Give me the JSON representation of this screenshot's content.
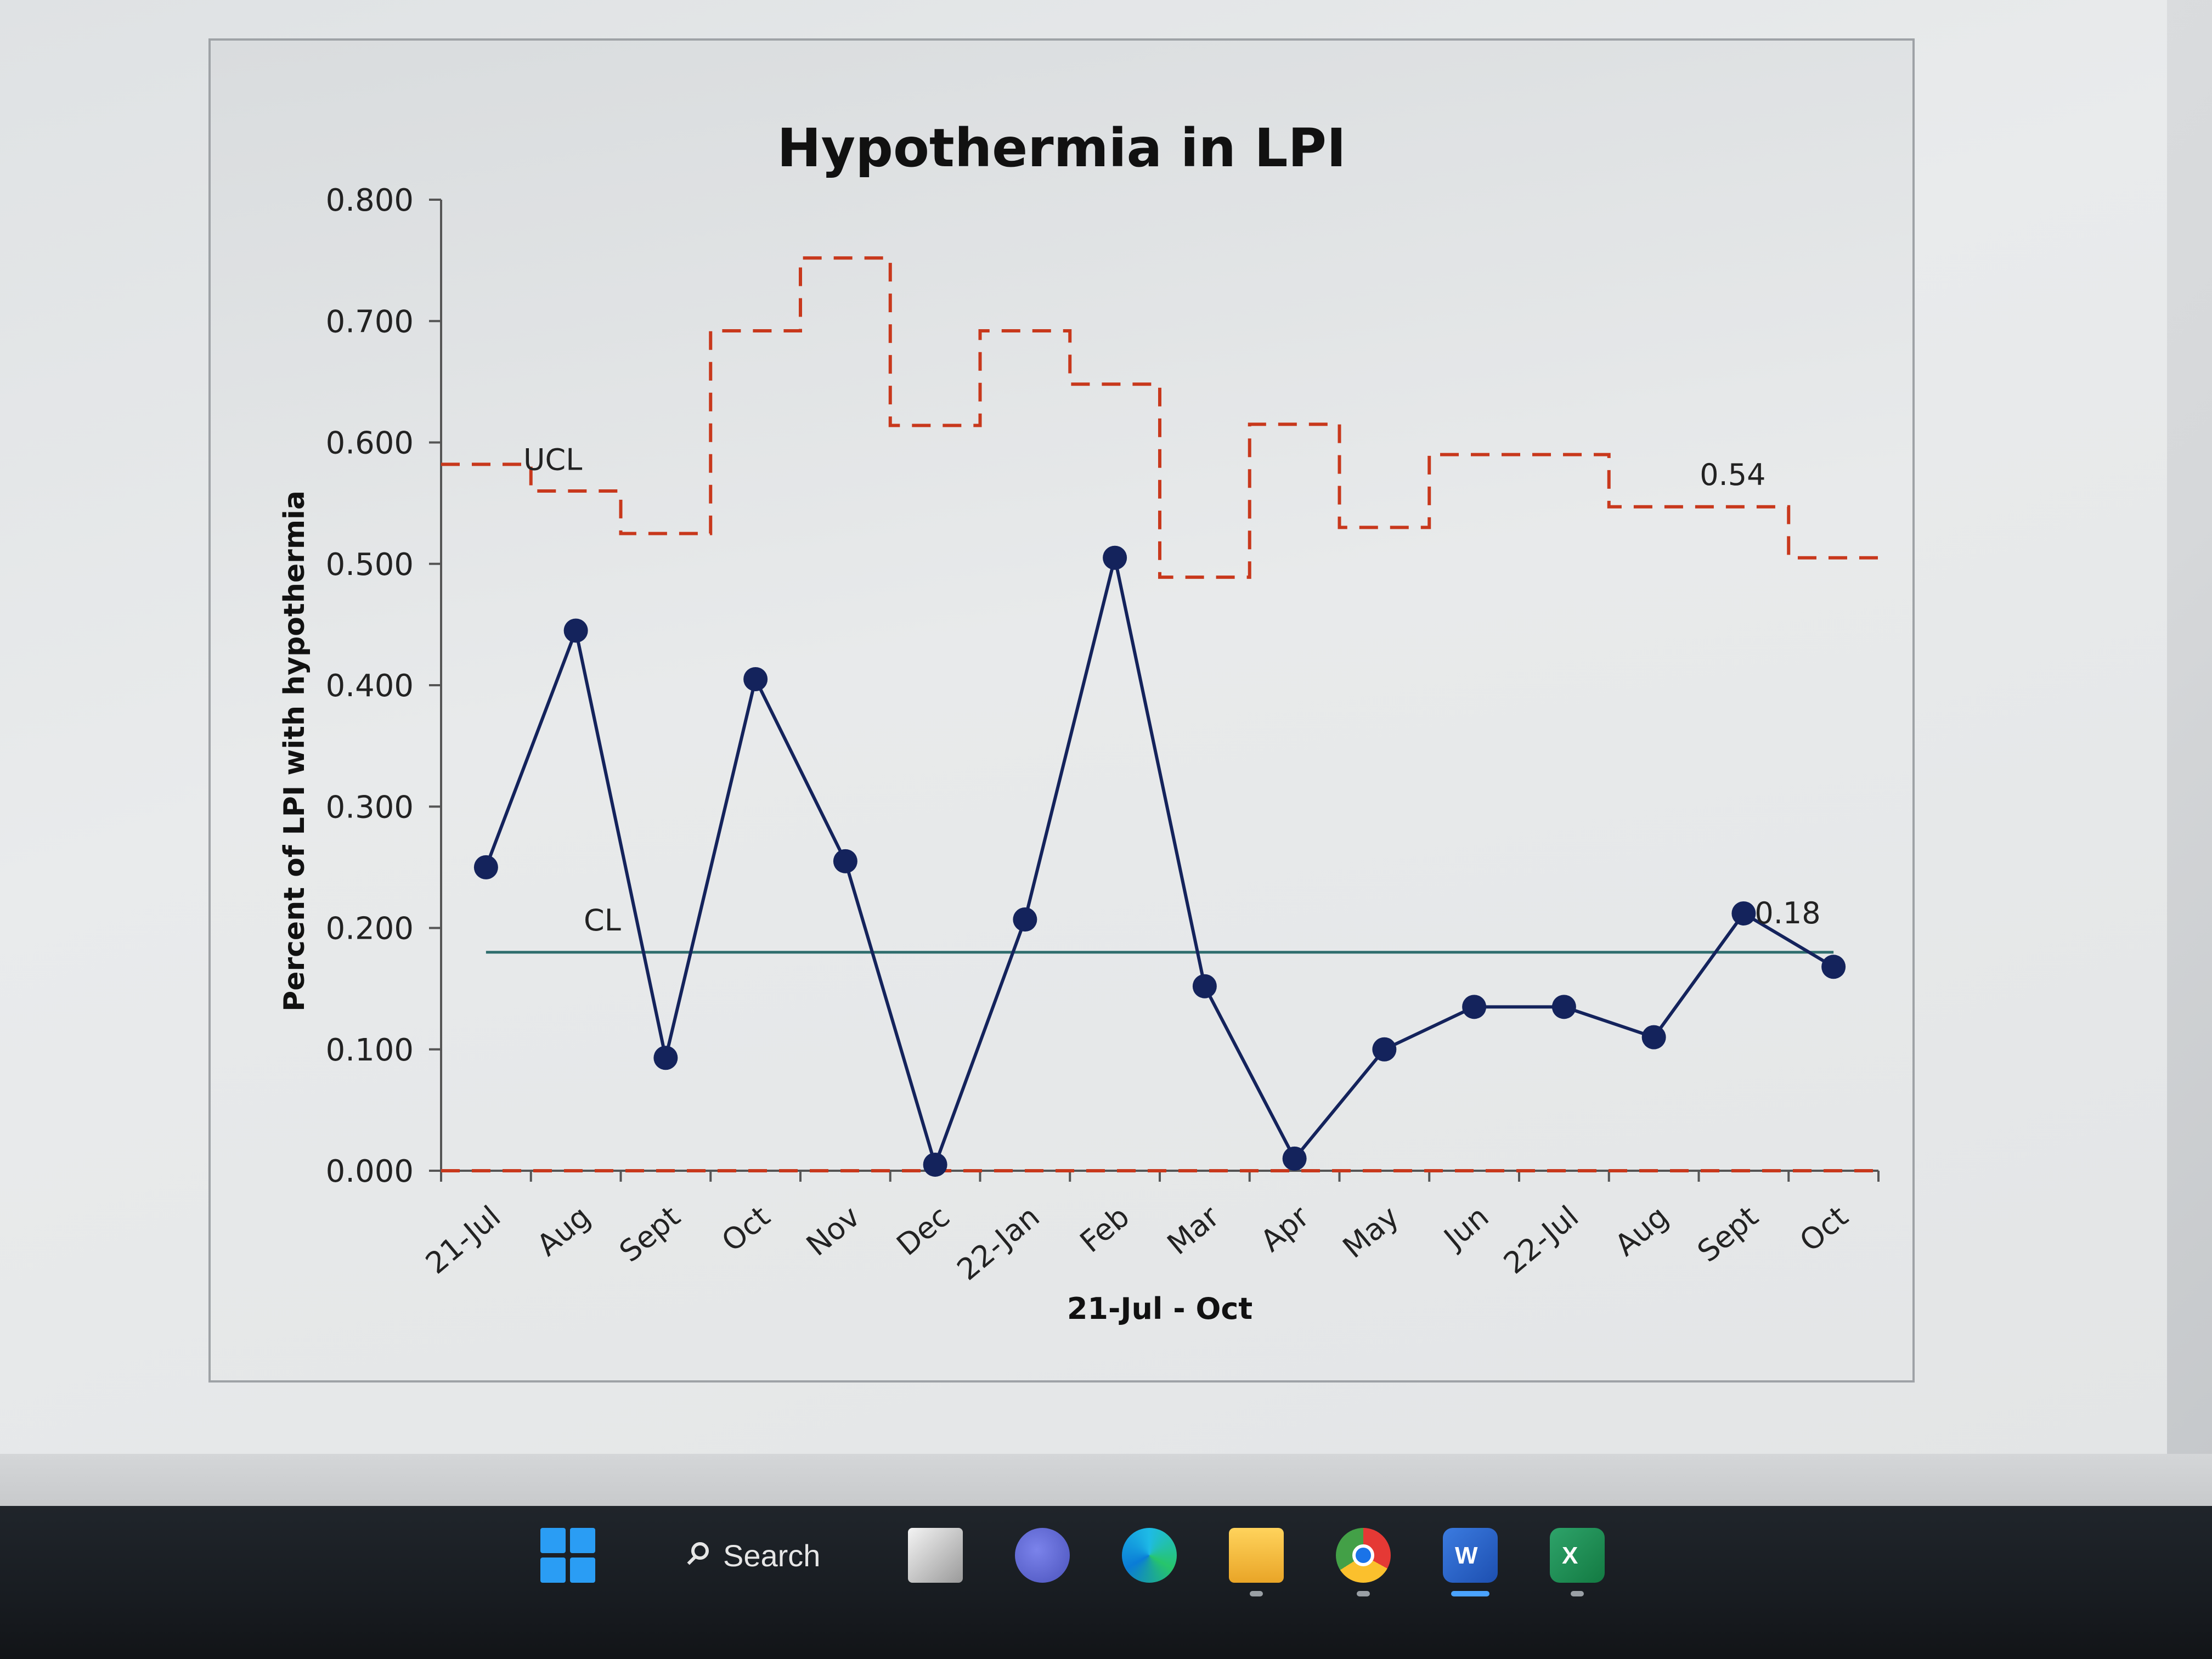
{
  "chart_data": {
    "type": "line",
    "title": "Hypothermia in LPI",
    "xlabel": "21-Jul - Oct",
    "ylabel": "Percent of LPI with hypothermia",
    "categories": [
      "21-Jul",
      "Aug",
      "Sept",
      "Oct",
      "Nov",
      "Dec",
      "22-Jan",
      "Feb",
      "Mar",
      "Apr",
      "May",
      "Jun",
      "22-Jul",
      "Aug",
      "Sept",
      "Oct"
    ],
    "ylim": [
      0,
      0.8
    ],
    "yticks": [
      "0.000",
      "0.100",
      "0.200",
      "0.300",
      "0.400",
      "0.500",
      "0.600",
      "0.700",
      "0.800"
    ],
    "series": [
      {
        "values": [
          0.25,
          0.445,
          0.093,
          0.405,
          0.255,
          0.005,
          0.207,
          0.505,
          0.152,
          0.01,
          0.1,
          0.135,
          0.135,
          0.11,
          0.212,
          0.168
        ]
      },
      {
        "name": "UCL",
        "values": [
          0.582,
          0.56,
          0.525,
          0.692,
          0.752,
          0.614,
          0.692,
          0.648,
          0.489,
          0.615,
          0.53,
          0.59,
          0.59,
          0.547,
          0.547,
          0.505
        ]
      },
      {
        "name": "CL",
        "values": [
          0.18,
          0.18,
          0.18,
          0.18,
          0.18,
          0.18,
          0.18,
          0.18,
          0.18,
          0.18,
          0.18,
          0.18,
          0.18,
          0.18,
          0.18,
          0.18
        ]
      },
      {
        "values": [
          0,
          0,
          0,
          0,
          0,
          0,
          0,
          0,
          0,
          0,
          0,
          0,
          0,
          0,
          0,
          0
        ]
      }
    ],
    "annotations": [
      "0.54",
      "0.18"
    ],
    "colors": {
      "data": "#14235c",
      "limits": "#c8381c",
      "center": "#2f6e6e"
    },
    "grid": false,
    "legend": "none"
  },
  "taskbar": {
    "search_label": "Search",
    "icons": [
      "windows-start-icon",
      "search-icon",
      "task-view-icon",
      "teams-icon",
      "edge-icon",
      "file-explorer-icon",
      "chrome-icon",
      "word-icon",
      "excel-icon"
    ],
    "word_letter": "W",
    "excel_letter": "X"
  }
}
